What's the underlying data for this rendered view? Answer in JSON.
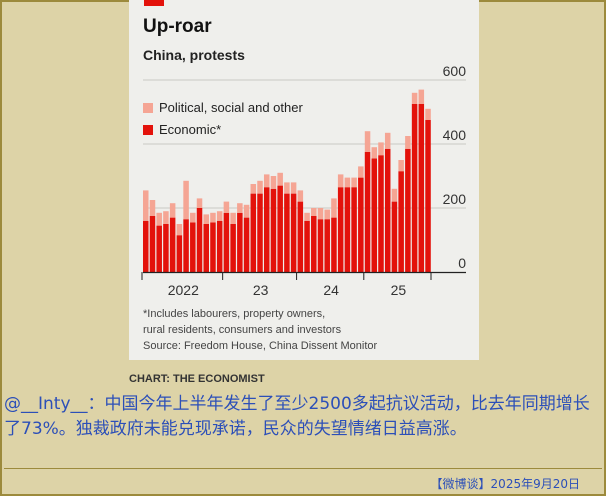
{
  "chart_data": {
    "type": "bar",
    "stacked": true,
    "title": "Up-roar",
    "subtitle": "China, protests",
    "series": [
      {
        "name": "Political, social and other",
        "color": "#f5a594"
      },
      {
        "name": "Economic*",
        "color": "#e3120b"
      }
    ],
    "economic": [
      160,
      175,
      145,
      150,
      170,
      115,
      165,
      155,
      200,
      150,
      155,
      160,
      185,
      150,
      185,
      170,
      245,
      245,
      265,
      260,
      270,
      245,
      245,
      220,
      160,
      175,
      165,
      165,
      170,
      265,
      265,
      265,
      295,
      375,
      355,
      365,
      385,
      220,
      315,
      385,
      525,
      525,
      475
    ],
    "other": [
      95,
      50,
      40,
      40,
      45,
      35,
      120,
      30,
      30,
      30,
      30,
      30,
      35,
      35,
      30,
      40,
      30,
      40,
      40,
      40,
      40,
      35,
      35,
      35,
      25,
      25,
      35,
      30,
      60,
      40,
      30,
      30,
      35,
      65,
      35,
      40,
      50,
      40,
      35,
      40,
      35,
      45,
      35
    ],
    "x_ticks": [
      "2022",
      "23",
      "24",
      "25"
    ],
    "y_ticks": [
      "0",
      "200",
      "400",
      "600"
    ],
    "ylim": [
      0,
      600
    ],
    "grid": true,
    "legend_position": "top-left"
  },
  "notes": {
    "line1": "*Includes labourers, property owners,",
    "line2": "rural residents, consumers and investors",
    "line3": "Source: Freedom House, China Dissent Monitor"
  },
  "credit": "CHART: THE ECONOMIST",
  "caption": {
    "text": "@__Inty__：中国今年上半年发生了至少2500多起抗议活动，比去年同期增长了73%。独裁政府未能兑现承诺，民众的失望情绪日益高涨。"
  },
  "footer": {
    "text": "【微博谈】2025年9月20日"
  }
}
